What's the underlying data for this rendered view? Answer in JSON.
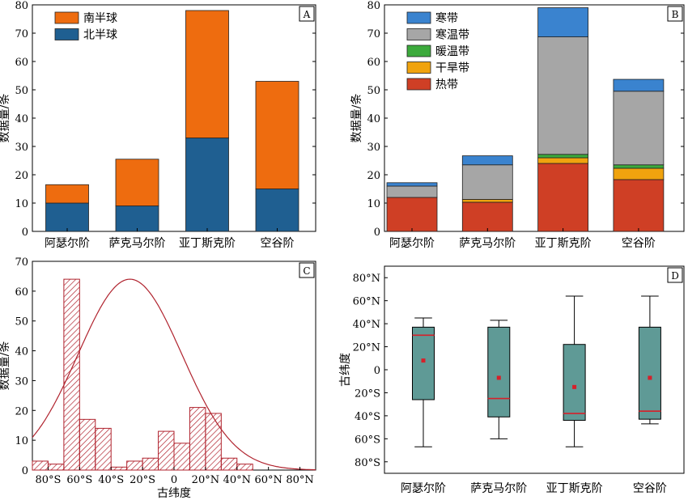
{
  "chart_data": [
    {
      "panel_label": "A",
      "type": "bar",
      "stacked": true,
      "categories": [
        "阿瑟尔阶",
        "萨克马尔阶",
        "亚丁斯克阶",
        "空谷阶"
      ],
      "series": [
        {
          "name": "北半球",
          "color": "#1f5f91",
          "values": [
            10,
            9,
            33,
            15
          ]
        },
        {
          "name": "南半球",
          "color": "#ee6c0f",
          "values": [
            6.5,
            16.5,
            45,
            38
          ]
        }
      ],
      "ylabel": "数据量/条",
      "ylim": [
        0,
        80
      ],
      "yticks": [
        0,
        10,
        20,
        30,
        40,
        50,
        60,
        70,
        80
      ],
      "legend_position": "top-left"
    },
    {
      "panel_label": "B",
      "type": "bar",
      "stacked": true,
      "categories": [
        "阿瑟尔阶",
        "萨克马尔阶",
        "亚丁斯克阶",
        "空谷阶"
      ],
      "series": [
        {
          "name": "热带",
          "color": "#cf3f25",
          "values": [
            12,
            10.3,
            24,
            18.3
          ]
        },
        {
          "name": "干旱带",
          "color": "#f0a30e",
          "values": [
            0,
            1,
            2,
            4
          ]
        },
        {
          "name": "暖温带",
          "color": "#3caa3c",
          "values": [
            0,
            0,
            1.2,
            1.2
          ]
        },
        {
          "name": "寒温带",
          "color": "#a6a6a6",
          "values": [
            4,
            12.2,
            41.5,
            26
          ]
        },
        {
          "name": "寒带",
          "color": "#3a83cf",
          "values": [
            1.2,
            3.2,
            10.3,
            4.2
          ]
        }
      ],
      "ylabel": "数据量/条",
      "ylim": [
        0,
        80
      ],
      "yticks": [
        0,
        10,
        20,
        30,
        40,
        50,
        60,
        70,
        80
      ],
      "legend_position": "top-left"
    },
    {
      "panel_label": "C",
      "type": "bar",
      "subtype": "histogram",
      "x_range": [
        -90,
        90
      ],
      "bin_width": 10,
      "bins": [
        {
          "x0": -90,
          "x1": -80,
          "count": 3
        },
        {
          "x0": -80,
          "x1": -70,
          "count": 2
        },
        {
          "x0": -70,
          "x1": -60,
          "count": 64
        },
        {
          "x0": -60,
          "x1": -50,
          "count": 17
        },
        {
          "x0": -50,
          "x1": -40,
          "count": 14
        },
        {
          "x0": -40,
          "x1": -30,
          "count": 1
        },
        {
          "x0": -30,
          "x1": -20,
          "count": 3
        },
        {
          "x0": -20,
          "x1": -10,
          "count": 4
        },
        {
          "x0": -10,
          "x1": 0,
          "count": 13
        },
        {
          "x0": 0,
          "x1": 10,
          "count": 9
        },
        {
          "x0": 10,
          "x1": 20,
          "count": 21
        },
        {
          "x0": 20,
          "x1": 30,
          "count": 19
        },
        {
          "x0": 30,
          "x1": 40,
          "count": 4
        },
        {
          "x0": 40,
          "x1": 50,
          "count": 2
        }
      ],
      "fit_curve": {
        "type": "normal",
        "mean": -28,
        "sd": 33,
        "peak": 64
      },
      "bar_color": "#b0232e",
      "xlabel": "古纬度",
      "ylabel": "数据量/条",
      "ylim": [
        0,
        70
      ],
      "yticks": [
        0,
        10,
        20,
        30,
        40,
        50,
        60,
        70
      ],
      "xticks": [
        -80,
        -60,
        -40,
        -20,
        0,
        20,
        40,
        60,
        80
      ],
      "xtick_labels": [
        "80°S",
        "60°S",
        "40°S",
        "20°S",
        "0",
        "20°N",
        "40°N",
        "60°N",
        "80°N"
      ]
    },
    {
      "panel_label": "D",
      "type": "box",
      "categories": [
        "阿瑟尔阶",
        "萨克马尔阶",
        "亚丁斯克阶",
        "空谷阶"
      ],
      "boxes": [
        {
          "min": -67,
          "q1": -26,
          "median": 30,
          "q3": 37,
          "max": 45,
          "mean": 8
        },
        {
          "min": -60,
          "q1": -41,
          "median": -25,
          "q3": 37,
          "max": 43,
          "mean": -7
        },
        {
          "min": -67,
          "q1": -44,
          "median": -38,
          "q3": 22,
          "max": 64,
          "mean": -15
        },
        {
          "min": -47,
          "q1": -43,
          "median": -36,
          "q3": 37,
          "max": 64,
          "mean": -7
        }
      ],
      "box_color": "#5f9a96",
      "median_color": "#d6202a",
      "ylabel": "古纬度",
      "ylim": [
        -90,
        90
      ],
      "yticks": [
        -80,
        -60,
        -40,
        -20,
        0,
        20,
        40,
        60,
        80
      ],
      "ytick_labels": [
        "80°S",
        "60°S",
        "40°S",
        "20°S",
        "0",
        "20°N",
        "40°N",
        "60°N",
        "80°N"
      ]
    }
  ]
}
